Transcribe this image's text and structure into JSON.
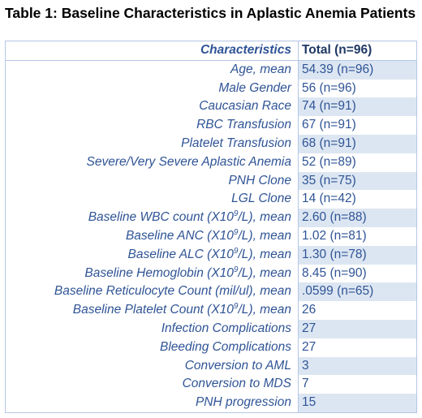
{
  "title": "Table 1: Baseline Characteristics in Aplastic Anemia Patients",
  "table": {
    "header": {
      "label": "Characteristics",
      "value": "Total (n=96)"
    },
    "rows": [
      {
        "label": "Age, mean",
        "value": "54.39 (n=96)"
      },
      {
        "label": "Male Gender",
        "value": "56 (n=96)"
      },
      {
        "label": "Caucasian Race",
        "value": "74 (n=91)"
      },
      {
        "label": "RBC Transfusion",
        "value": "67 (n=91)"
      },
      {
        "label": "Platelet Transfusion",
        "value": "68 (n=91)"
      },
      {
        "label": "Severe/Very Severe Aplastic Anemia",
        "value": "52 (n=89)"
      },
      {
        "label": "PNH Clone",
        "value": "35 (n=75)"
      },
      {
        "label": "LGL Clone",
        "value": "14 (n=42)"
      },
      {
        "label_pre": "Baseline WBC count (X10",
        "label_sup": "9",
        "label_post": "/L), mean",
        "value": "2.60 (n=88)"
      },
      {
        "label_pre": "Baseline ANC (X10",
        "label_sup": "9",
        "label_post": "/L), mean",
        "value": "1.02 (n=81)"
      },
      {
        "label_pre": "Baseline ALC (X10",
        "label_sup": "9",
        "label_post": "/L), mean",
        "value": "1.30 (n=78)"
      },
      {
        "label_pre": "Baseline Hemoglobin (X10",
        "label_sup": "9",
        "label_post": "/L), mean",
        "value": "8.45 (n=90)"
      },
      {
        "label": "Baseline Reticulocyte Count (mil/ul), mean",
        "value": ".0599 (n=65)"
      },
      {
        "label_pre": "Baseline Platelet Count (X10",
        "label_sup": "9",
        "label_post": "/L), mean",
        "value": "26"
      },
      {
        "label": "Infection Complications",
        "value": "27"
      },
      {
        "label": "Bleeding Complications",
        "value": "27"
      },
      {
        "label": "Conversion to AML",
        "value": "3"
      },
      {
        "label": "Conversion to MDS",
        "value": "7"
      },
      {
        "label": "PNH progression",
        "value": "15"
      }
    ]
  },
  "colors": {
    "label_text": "#2f5496",
    "value_shade": "#dce6f2",
    "border": "#b4c6e7"
  }
}
